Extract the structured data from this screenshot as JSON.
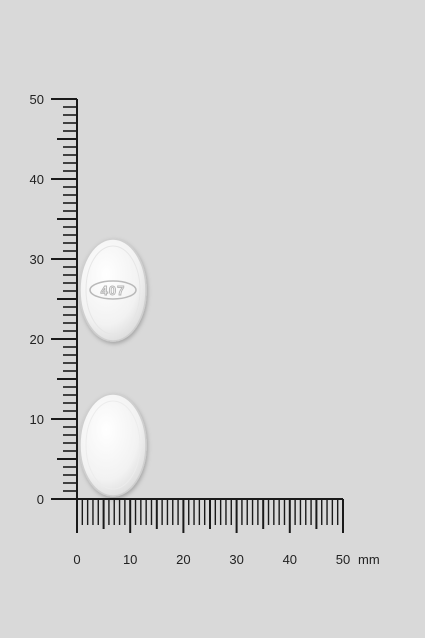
{
  "scale": {
    "unit": "mm",
    "vertical_labels": [
      "0",
      "10",
      "20",
      "30",
      "40",
      "50"
    ],
    "horizontal_labels": [
      "0",
      "10",
      "20",
      "30",
      "40",
      "50"
    ],
    "range_mm": [
      0,
      50
    ],
    "minor_step_mm": 1
  },
  "tablets": [
    {
      "name": "tablet-top",
      "imprint": "407",
      "side": "front"
    },
    {
      "name": "tablet-bottom",
      "imprint": "",
      "side": "back"
    }
  ],
  "colors": {
    "background": "#d9d9d9",
    "ruler": "#1a1a1a",
    "tablet": "#f4f4f4",
    "tablet_edge": "#c8c8c8",
    "imprint": "#b9b9b9"
  }
}
